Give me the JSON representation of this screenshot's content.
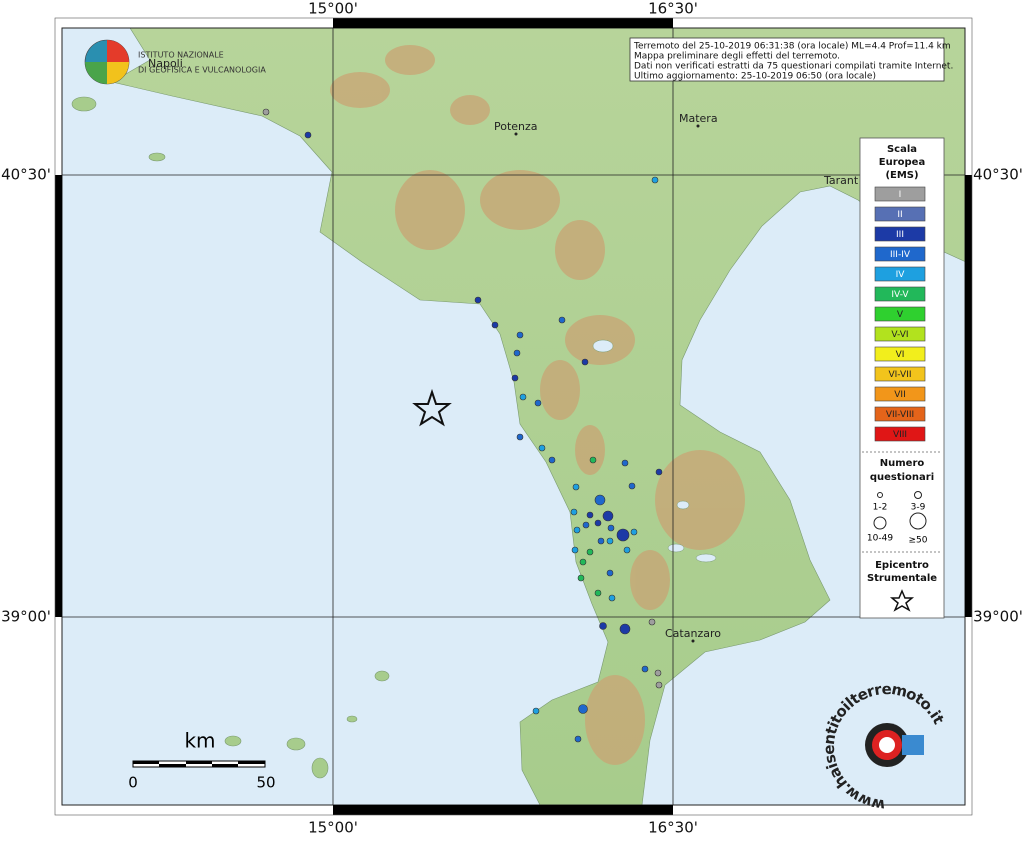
{
  "map": {
    "info": [
      "Terremoto del 25-10-2019 06:31:38 (ora locale) ML=4.4 Prof=11.4 km",
      "Mappa preliminare degli effetti del terremoto.",
      "Dati non verificati estratti da 75 questionari compilati tramite Internet.",
      "Ultimo aggiornamento: 25-10-2019 06:50 (ora locale)"
    ],
    "logo": [
      "ISTITUTO NAZIONALE",
      "DI GEOFISICA E VULCANOLOGIA"
    ],
    "graticule": {
      "lon": [
        "15°00'",
        "16°30'"
      ],
      "lat": [
        "40°30'",
        "39°00'"
      ]
    },
    "places": [
      "Napoli",
      "Potenza",
      "Matera",
      "Tarant",
      "Catanzaro"
    ],
    "legend": {
      "intensity_title": [
        "Scala",
        "Europea",
        "(EMS)"
      ],
      "levels": [
        {
          "label": "I",
          "color": "#9e9e9e"
        },
        {
          "label": "II",
          "color": "#5770b4"
        },
        {
          "label": "III",
          "color": "#1c3aa6"
        },
        {
          "label": "III-IV",
          "color": "#1f68cc"
        },
        {
          "label": "IV",
          "color": "#1ea0e0"
        },
        {
          "label": "IV-V",
          "color": "#22b85a"
        },
        {
          "label": "V",
          "color": "#2fd02f"
        },
        {
          "label": "V-VI",
          "color": "#b2e21e"
        },
        {
          "label": "VI",
          "color": "#f2ee1c"
        },
        {
          "label": "VI-VII",
          "color": "#f2c41c"
        },
        {
          "label": "VII",
          "color": "#f2961a"
        },
        {
          "label": "VII-VIII",
          "color": "#e4641a"
        },
        {
          "label": "VIII",
          "color": "#e01616"
        }
      ],
      "count_title": [
        "Numero",
        "questionari"
      ],
      "count_classes": [
        "1-2",
        "3-9",
        "10-49",
        "≥50"
      ],
      "epicenter_title": [
        "Epicentro",
        "Strumentale"
      ]
    },
    "scale": {
      "unit": "km",
      "ticks": [
        "0",
        "50"
      ]
    },
    "watermark": "www.haisentitoilterremoto.it"
  }
}
